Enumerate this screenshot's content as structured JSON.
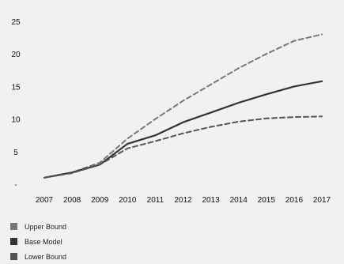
{
  "chart_data": {
    "type": "line",
    "title": "",
    "xlabel": "",
    "ylabel": "",
    "x": [
      2007,
      2008,
      2009,
      2010,
      2011,
      2012,
      2013,
      2014,
      2015,
      2016,
      2017
    ],
    "x_tick_labels": [
      "2007",
      "2008",
      "2009",
      "2010",
      "2011",
      "2012",
      "2013",
      "2014",
      "2015",
      "2016",
      "2017"
    ],
    "y_tick_labels": [
      "-",
      "5",
      "10",
      "15",
      "20",
      "25"
    ],
    "y_ticks": [
      0,
      5,
      10,
      15,
      20,
      25
    ],
    "ylim": [
      0,
      25
    ],
    "grid": false,
    "legend_position": "bottom-left",
    "series": [
      {
        "name": "Upper Bound",
        "style": "dashed",
        "color": "#777777",
        "values": [
          1.0,
          1.8,
          3.3,
          7.0,
          10.0,
          12.8,
          15.3,
          17.8,
          20.0,
          22.0,
          23.0
        ]
      },
      {
        "name": "Base Model",
        "style": "solid",
        "color": "#333333",
        "values": [
          1.0,
          1.8,
          3.0,
          6.2,
          7.5,
          9.5,
          11.0,
          12.5,
          13.8,
          15.0,
          15.8
        ]
      },
      {
        "name": "Lower Bound",
        "style": "dashed",
        "color": "#555555",
        "values": [
          1.0,
          1.7,
          3.0,
          5.5,
          6.6,
          7.8,
          8.8,
          9.6,
          10.1,
          10.3,
          10.4
        ]
      }
    ]
  }
}
